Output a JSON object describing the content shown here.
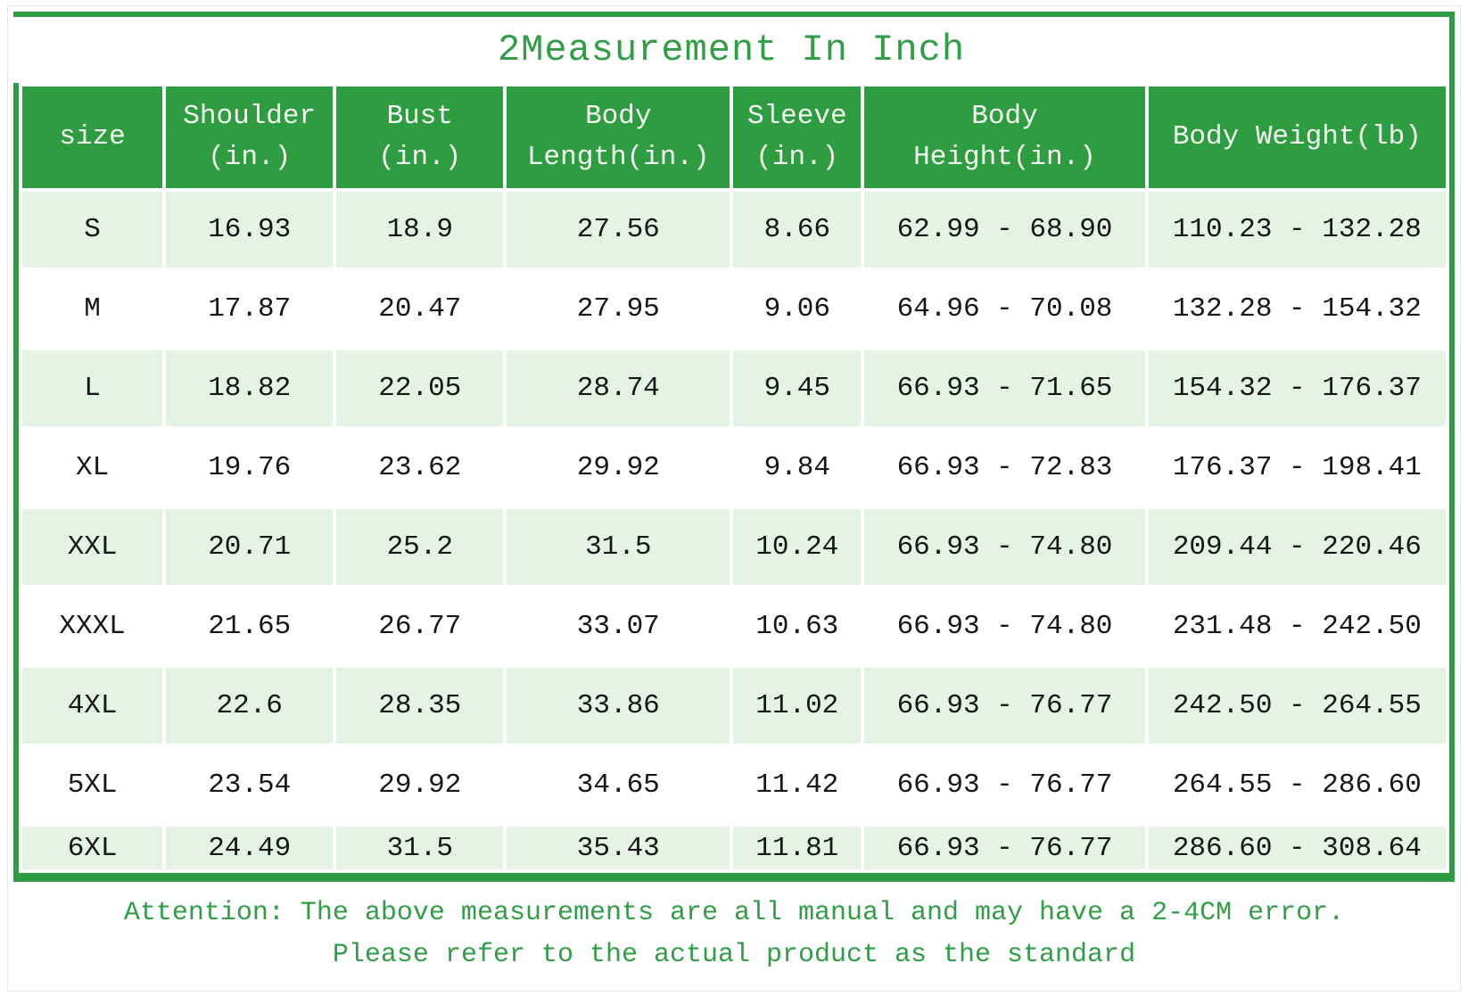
{
  "title": "2Measurement In Inch",
  "colors": {
    "green": "#2e9c40",
    "green_text": "#2f9e44",
    "light_row": "#e4f3e4",
    "header_text": "#f5f8f1",
    "body_text": "#161616",
    "frame_border": "#e6e6e6"
  },
  "header_cells": [
    {
      "line1": "size",
      "line2": ""
    },
    {
      "line1": "Shoulder",
      "line2": "(in.)"
    },
    {
      "line1": "Bust",
      "line2": "(in.)"
    },
    {
      "line1": "Body",
      "line2": "Length(in.)"
    },
    {
      "line1": "Sleeve",
      "line2": "(in.)"
    },
    {
      "line1": "Body",
      "line2": "Height(in.)"
    },
    {
      "line1": "Body Weight(lb)",
      "line2": ""
    }
  ],
  "chart_data": {
    "type": "table",
    "title": "2Measurement In Inch",
    "columns": [
      "size",
      "Shoulder (in.)",
      "Bust (in.)",
      "Body Length(in.)",
      "Sleeve (in.)",
      "Body Height(in.)",
      "Body Weight(lb)"
    ],
    "rows": [
      [
        "S",
        "16.93",
        "18.9",
        "27.56",
        "8.66",
        "62.99 - 68.90",
        "110.23 - 132.28"
      ],
      [
        "M",
        "17.87",
        "20.47",
        "27.95",
        "9.06",
        "64.96 - 70.08",
        "132.28 - 154.32"
      ],
      [
        "L",
        "18.82",
        "22.05",
        "28.74",
        "9.45",
        "66.93 - 71.65",
        "154.32 - 176.37"
      ],
      [
        "XL",
        "19.76",
        "23.62",
        "29.92",
        "9.84",
        "66.93 - 72.83",
        "176.37 - 198.41"
      ],
      [
        "XXL",
        "20.71",
        "25.2",
        "31.5",
        "10.24",
        "66.93 - 74.80",
        "209.44 - 220.46"
      ],
      [
        "XXXL",
        "21.65",
        "26.77",
        "33.07",
        "10.63",
        "66.93 - 74.80",
        "231.48 - 242.50"
      ],
      [
        "4XL",
        "22.6",
        "28.35",
        "33.86",
        "11.02",
        "66.93 - 76.77",
        "242.50 - 264.55"
      ],
      [
        "5XL",
        "23.54",
        "29.92",
        "34.65",
        "11.42",
        "66.93 - 76.77",
        "264.55 - 286.60"
      ],
      [
        "6XL",
        "24.49",
        "31.5",
        "35.43",
        "11.81",
        "66.93 - 76.77",
        "286.60 - 308.64"
      ]
    ]
  },
  "footer": {
    "line1": "Attention: The above measurements are all manual and may have a 2-4CM error.",
    "line2": "Please refer to the actual product as the standard"
  }
}
